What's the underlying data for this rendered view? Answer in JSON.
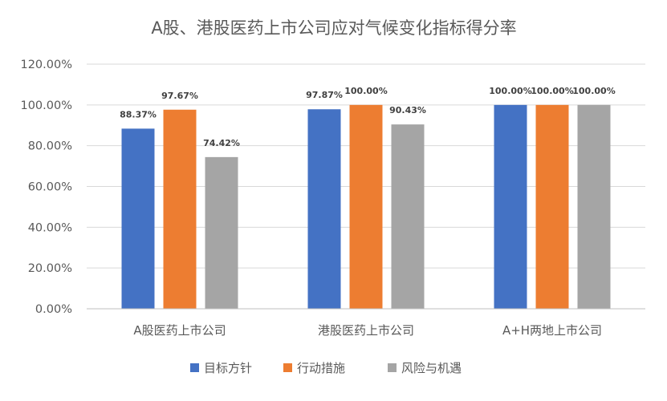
{
  "chart_data": {
    "type": "bar",
    "title": "A股、港股医药上市公司应对气候变化指标得分率",
    "categories": [
      "A股医药上市公司",
      "港股医药上市公司",
      "A+H两地上市公司"
    ],
    "series": [
      {
        "name": "目标方针",
        "color": "#4472C4",
        "values": [
          88.37,
          97.87,
          100.0
        ],
        "labels": [
          "88.37%",
          "97.87%",
          "100.00%"
        ]
      },
      {
        "name": "行动措施",
        "color": "#ED7D31",
        "values": [
          97.67,
          100.0,
          100.0
        ],
        "labels": [
          "97.67%",
          "100.00%",
          "100.00%"
        ]
      },
      {
        "name": "风险与机遇",
        "color": "#A5A5A5",
        "values": [
          74.42,
          90.43,
          100.0
        ],
        "labels": [
          "74.42%",
          "90.43%",
          "100.00%"
        ]
      }
    ],
    "ylim": [
      0,
      120
    ],
    "yticks": [
      "0.00%",
      "20.00%",
      "40.00%",
      "60.00%",
      "80.00%",
      "100.00%",
      "120.00%"
    ],
    "grid": true,
    "legend_position": "bottom"
  }
}
